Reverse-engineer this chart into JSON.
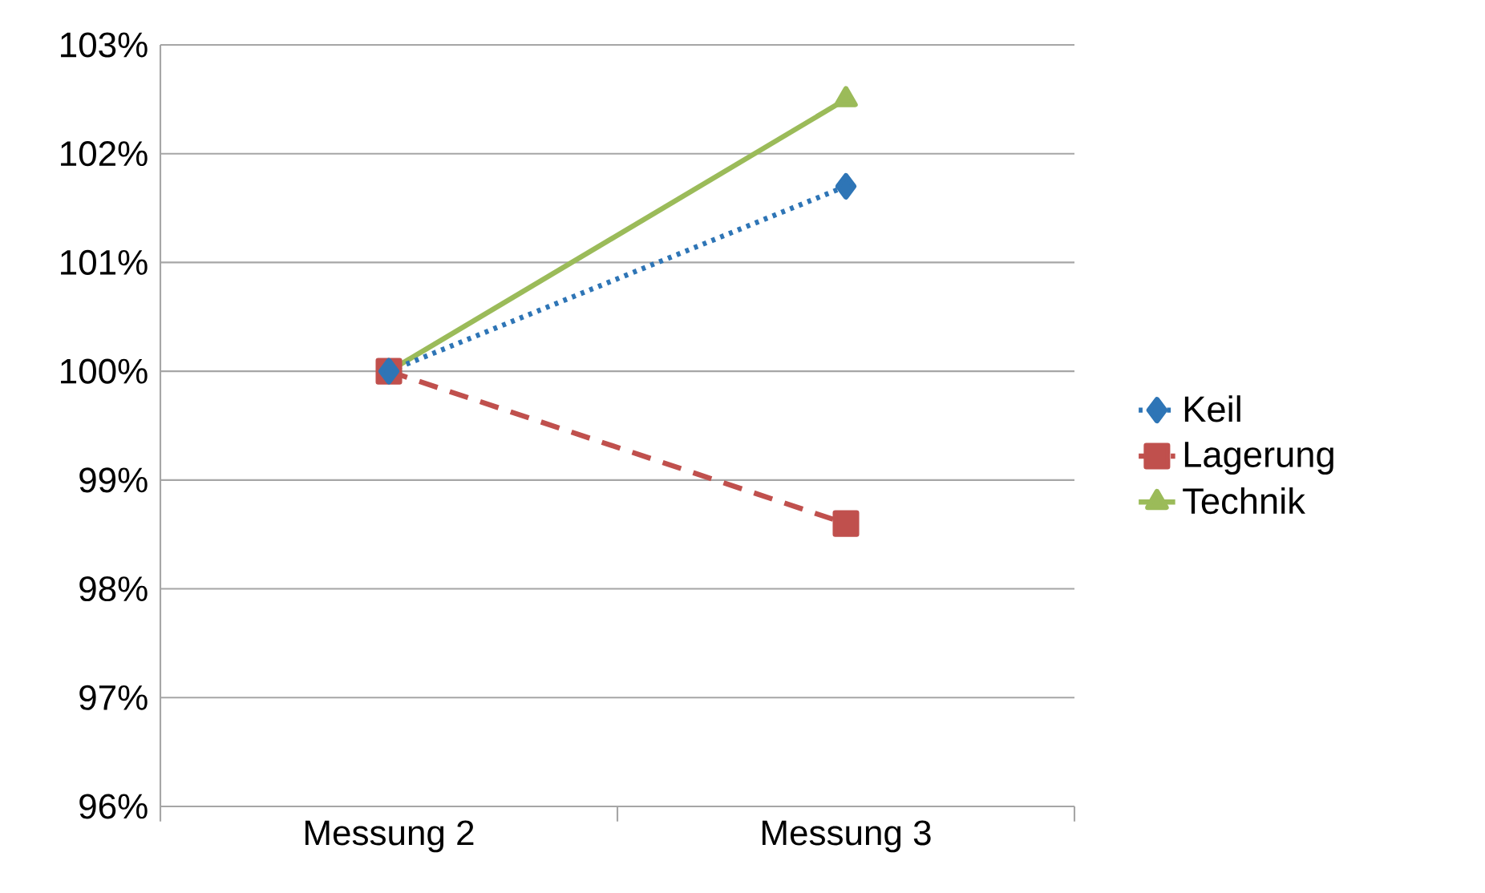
{
  "chart_data": {
    "type": "line",
    "categories": [
      "Messung 2",
      "Messung 3"
    ],
    "series": [
      {
        "name": "Keil",
        "color": "#2e75b6",
        "values": [
          100,
          101.7
        ],
        "marker": "diamond",
        "line_style": "dotted"
      },
      {
        "name": "Lagerung",
        "color": "#c0504d",
        "values": [
          100,
          98.6
        ],
        "marker": "square",
        "line_style": "dashed"
      },
      {
        "name": "Technik",
        "color": "#9bbb59",
        "values": [
          100,
          102.5
        ],
        "marker": "triangle",
        "line_style": "solid"
      }
    ],
    "ylim": [
      96,
      103
    ],
    "yticks": [
      {
        "value": 96,
        "label": "96%"
      },
      {
        "value": 97,
        "label": "97%"
      },
      {
        "value": 98,
        "label": "98%"
      },
      {
        "value": 99,
        "label": "99%"
      },
      {
        "value": 100,
        "label": "100%"
      },
      {
        "value": 101,
        "label": "101%"
      },
      {
        "value": 102,
        "label": "102%"
      },
      {
        "value": 103,
        "label": "103%"
      }
    ],
    "grid": "y",
    "legend": "right"
  }
}
